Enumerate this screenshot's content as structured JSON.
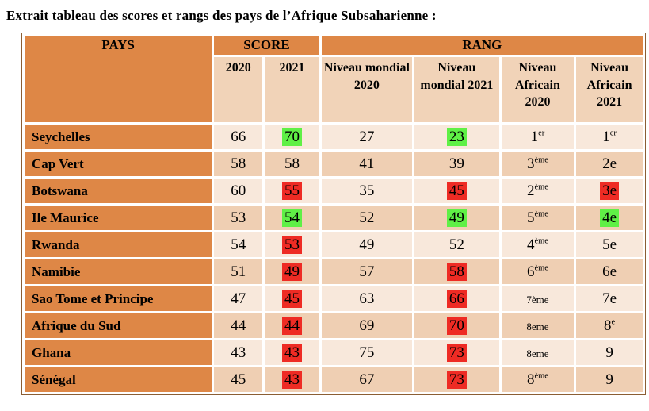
{
  "title": "Extrait tableau des scores et rangs des pays de l’Afrique Subsaharienne :",
  "table": {
    "header": {
      "pays": "PAYS",
      "score": "SCORE",
      "rang": "RANG",
      "sub": [
        "2020",
        "2021",
        "Niveau mondial 2020",
        "Niveau mondial 2021",
        "Niveau Africain 2020",
        "Niveau Africain 2021"
      ]
    },
    "colors": {
      "header_orange": "#de8746",
      "subheader_bg": "#f1d3b8",
      "row_light": "#f8e8db",
      "row_dark": "#efcfb3",
      "highlight_green": "#5ff046",
      "highlight_red": "#ee2b24",
      "cell_gap": "#ffffff",
      "text": "#000000"
    },
    "rows": [
      {
        "country": "Seychelles",
        "score_2020": {
          "t": "66"
        },
        "score_2021": {
          "t": "70",
          "hl": "green"
        },
        "mondial_2020": {
          "t": "27"
        },
        "mondial_2021": {
          "t": "23",
          "hl": "green"
        },
        "africain_2020": {
          "t": "1",
          "sup": "er"
        },
        "africain_2021": {
          "t": "1",
          "sup": "er"
        }
      },
      {
        "country": "Cap Vert",
        "score_2020": {
          "t": "58"
        },
        "score_2021": {
          "t": "58"
        },
        "mondial_2020": {
          "t": "41"
        },
        "mondial_2021": {
          "t": "39"
        },
        "africain_2020": {
          "t": "3",
          "sup": "ème"
        },
        "africain_2021": {
          "t": "2e"
        }
      },
      {
        "country": "Botswana",
        "score_2020": {
          "t": "60"
        },
        "score_2021": {
          "t": "55",
          "hl": "red"
        },
        "mondial_2020": {
          "t": "35"
        },
        "mondial_2021": {
          "t": "45",
          "hl": "red"
        },
        "africain_2020": {
          "t": "2",
          "sup": "ème"
        },
        "africain_2021": {
          "t": "3e",
          "hl": "red"
        }
      },
      {
        "country": "Ile Maurice",
        "score_2020": {
          "t": "53"
        },
        "score_2021": {
          "t": "54",
          "hl": "green"
        },
        "mondial_2020": {
          "t": "52"
        },
        "mondial_2021": {
          "t": "49",
          "hl": "green"
        },
        "africain_2020": {
          "t": "5",
          "sup": "ème"
        },
        "africain_2021": {
          "t": "4e",
          "hl": "green"
        }
      },
      {
        "country": "Rwanda",
        "score_2020": {
          "t": "54"
        },
        "score_2021": {
          "t": "53",
          "hl": "red"
        },
        "mondial_2020": {
          "t": "49"
        },
        "mondial_2021": {
          "t": "52"
        },
        "africain_2020": {
          "t": "4",
          "sup": "ème"
        },
        "africain_2021": {
          "t": "5e"
        }
      },
      {
        "country": "Namibie",
        "score_2020": {
          "t": "51"
        },
        "score_2021": {
          "t": "49",
          "hl": "red"
        },
        "mondial_2020": {
          "t": "57"
        },
        "mondial_2021": {
          "t": "58",
          "hl": "red"
        },
        "africain_2020": {
          "t": "6",
          "sup": "ème"
        },
        "africain_2021": {
          "t": "6e"
        }
      },
      {
        "country": "Sao Tome et Principe",
        "score_2020": {
          "t": "47"
        },
        "score_2021": {
          "t": "45",
          "hl": "red"
        },
        "mondial_2020": {
          "t": "63"
        },
        "mondial_2021": {
          "t": "66",
          "hl": "red"
        },
        "africain_2020": {
          "t": "7ème",
          "small": true
        },
        "africain_2021": {
          "t": "7e"
        }
      },
      {
        "country": "Afrique du Sud",
        "score_2020": {
          "t": "44"
        },
        "score_2021": {
          "t": "44",
          "hl": "red"
        },
        "mondial_2020": {
          "t": "69"
        },
        "mondial_2021": {
          "t": "70",
          "hl": "red"
        },
        "africain_2020": {
          "t": "8eme",
          "small": true
        },
        "africain_2021": {
          "t": "8",
          "sup": "e"
        }
      },
      {
        "country": "Ghana",
        "score_2020": {
          "t": "43"
        },
        "score_2021": {
          "t": "43",
          "hl": "red"
        },
        "mondial_2020": {
          "t": "75"
        },
        "mondial_2021": {
          "t": "73",
          "hl": "red"
        },
        "africain_2020": {
          "t": "8eme",
          "small": true
        },
        "africain_2021": {
          "t": "9"
        }
      },
      {
        "country": "Sénégal",
        "score_2020": {
          "t": "45"
        },
        "score_2021": {
          "t": "43",
          "hl": "red"
        },
        "mondial_2020": {
          "t": "67"
        },
        "mondial_2021": {
          "t": "73",
          "hl": "red"
        },
        "africain_2020": {
          "t": "8",
          "sup": "ème"
        },
        "africain_2021": {
          "t": "9"
        }
      }
    ]
  }
}
